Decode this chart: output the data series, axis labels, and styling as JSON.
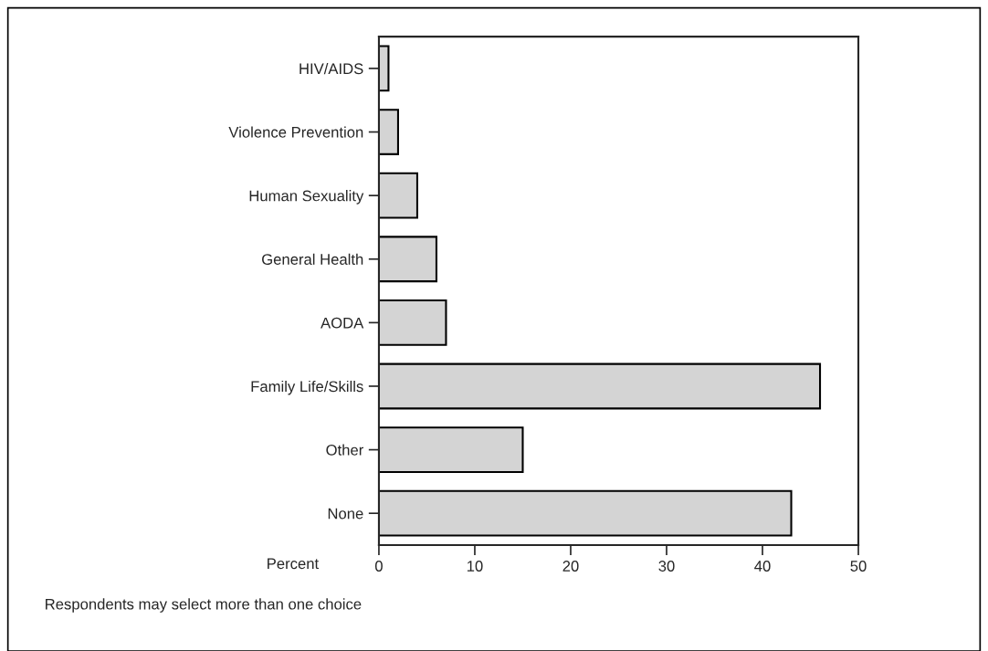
{
  "chart_data": {
    "type": "bar",
    "orientation": "horizontal",
    "xlabel": "Percent",
    "categories": [
      "HIV/AIDS",
      "Violence Prevention",
      "Human Sexuality",
      "General Health",
      "AODA",
      "Family Life/Skills",
      "Other",
      "None"
    ],
    "values": [
      1,
      2,
      4,
      6,
      7,
      46,
      15,
      43
    ],
    "color": "#d4d4d4",
    "xlim": [
      0,
      50
    ],
    "xticks": [
      0,
      10,
      20,
      30,
      40,
      50
    ],
    "grid": false,
    "legend": false,
    "annotations": [
      "Respondents may select more than one choice"
    ]
  }
}
